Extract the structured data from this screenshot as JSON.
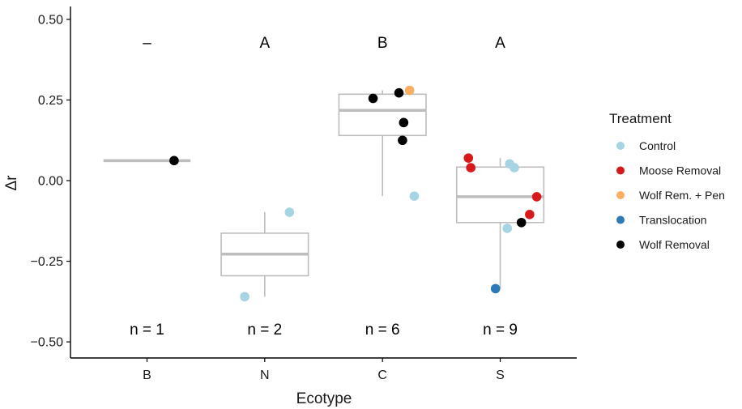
{
  "chart_data": {
    "type": "boxplot",
    "xlabel": "Ecotype",
    "ylabel": "Δr",
    "ylim": [
      -0.55,
      0.54
    ],
    "yticks": [
      -0.5,
      -0.25,
      0,
      0.25,
      0.5
    ],
    "ytick_labels": [
      "−0.50",
      "−0.25",
      "0.00",
      "0.25",
      "0.50"
    ],
    "categories": [
      "B",
      "N",
      "C",
      "S"
    ],
    "grid": false,
    "legend": {
      "title": "Treatment",
      "placement": "right",
      "entries": [
        {
          "name": "Control",
          "color": "#a6d4e3"
        },
        {
          "name": "Moose Removal",
          "color": "#d7191c"
        },
        {
          "name": "Wolf Rem. + Pen",
          "color": "#fdae61"
        },
        {
          "name": "Translocation",
          "color": "#2c7bb6"
        },
        {
          "name": "Wolf Removal",
          "color": "#000000"
        }
      ]
    },
    "boxes": [
      {
        "category": "B",
        "median": 0.062,
        "q1": 0.062,
        "q3": 0.062,
        "whisker_low": 0.062,
        "whisker_high": 0.062
      },
      {
        "category": "N",
        "median": -0.228,
        "q1": -0.295,
        "q3": -0.163,
        "whisker_low": -0.36,
        "whisker_high": -0.098
      },
      {
        "category": "C",
        "median": 0.218,
        "q1": 0.14,
        "q3": 0.268,
        "whisker_low": -0.048,
        "whisker_high": 0.28
      },
      {
        "category": "S",
        "median": -0.05,
        "q1": -0.13,
        "q3": 0.042,
        "whisker_low": -0.335,
        "whisker_high": 0.07
      }
    ],
    "points": [
      {
        "category": "B",
        "jitter": 0.23,
        "y": 0.062,
        "treatment": "Wolf Removal"
      },
      {
        "category": "N",
        "jitter": 0.21,
        "y": -0.098,
        "treatment": "Control"
      },
      {
        "category": "N",
        "jitter": -0.17,
        "y": -0.36,
        "treatment": "Control"
      },
      {
        "category": "C",
        "jitter": -0.08,
        "y": 0.255,
        "treatment": "Wolf Removal"
      },
      {
        "category": "C",
        "jitter": 0.14,
        "y": 0.272,
        "treatment": "Wolf Removal"
      },
      {
        "category": "C",
        "jitter": 0.23,
        "y": 0.28,
        "treatment": "Wolf Rem. + Pen"
      },
      {
        "category": "C",
        "jitter": 0.18,
        "y": 0.18,
        "treatment": "Wolf Removal"
      },
      {
        "category": "C",
        "jitter": 0.17,
        "y": 0.125,
        "treatment": "Wolf Removal"
      },
      {
        "category": "C",
        "jitter": 0.27,
        "y": -0.048,
        "treatment": "Control"
      },
      {
        "category": "S",
        "jitter": -0.27,
        "y": 0.07,
        "treatment": "Moose Removal"
      },
      {
        "category": "S",
        "jitter": -0.25,
        "y": 0.04,
        "treatment": "Moose Removal"
      },
      {
        "category": "S",
        "jitter": 0.08,
        "y": 0.052,
        "treatment": "Control"
      },
      {
        "category": "S",
        "jitter": 0.12,
        "y": 0.04,
        "treatment": "Control"
      },
      {
        "category": "S",
        "jitter": 0.31,
        "y": -0.05,
        "treatment": "Moose Removal"
      },
      {
        "category": "S",
        "jitter": 0.25,
        "y": -0.105,
        "treatment": "Moose Removal"
      },
      {
        "category": "S",
        "jitter": 0.18,
        "y": -0.13,
        "treatment": "Wolf Removal"
      },
      {
        "category": "S",
        "jitter": 0.06,
        "y": -0.148,
        "treatment": "Control"
      },
      {
        "category": "S",
        "jitter": -0.04,
        "y": -0.335,
        "treatment": "Translocation"
      }
    ],
    "annotations": {
      "top_y": 0.43,
      "bottom_y": -0.46,
      "group_letters": [
        "–",
        "A",
        "B",
        "A"
      ],
      "sample_sizes": [
        "n = 1",
        "n = 2",
        "n = 6",
        "n = 9"
      ]
    },
    "box_color": "#bdbdbd"
  }
}
